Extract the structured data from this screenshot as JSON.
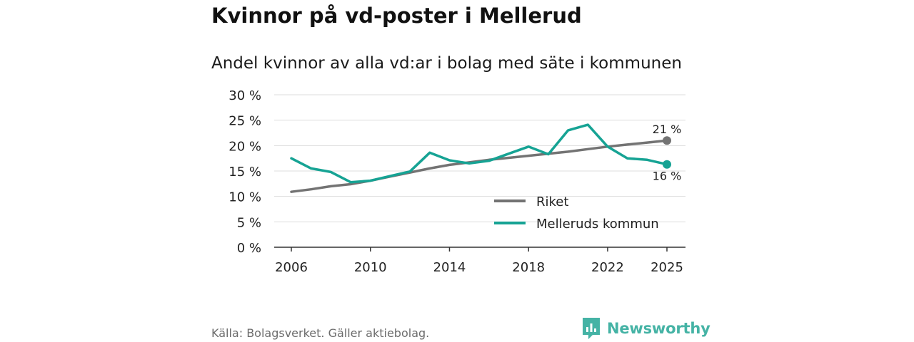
{
  "header": {
    "title": "Kvinnor på vd-poster i Mellerud",
    "subtitle": "Andel kvinnor av alla vd:ar i bolag med säte i kommunen"
  },
  "footer": {
    "source": "Källa: Bolagsverket. Gäller aktiebolag.",
    "brand": "Newsworthy"
  },
  "colors": {
    "riket": "#737373",
    "mellerud": "#16a394",
    "grid": "#dddddd",
    "axis": "#333333",
    "brand": "#45b3a5"
  },
  "chart_data": {
    "type": "line",
    "title": "Andel kvinnor av alla vd:ar i bolag med säte i kommunen",
    "xlabel": "",
    "ylabel": "",
    "xlim": [
      2006,
      2025
    ],
    "ylim": [
      0,
      30
    ],
    "x_ticks": [
      2006,
      2010,
      2014,
      2018,
      2022,
      2025
    ],
    "y_ticks": [
      0,
      5,
      10,
      15,
      20,
      25,
      30
    ],
    "y_tick_labels": [
      "0 %",
      "5 %",
      "10 %",
      "15 %",
      "20 %",
      "25 %",
      "30 %"
    ],
    "grid": true,
    "legend_position": "bottom-right",
    "x": [
      2006,
      2007,
      2008,
      2009,
      2010,
      2011,
      2012,
      2013,
      2014,
      2015,
      2016,
      2017,
      2018,
      2019,
      2020,
      2021,
      2022,
      2023,
      2024,
      2025
    ],
    "series": [
      {
        "name": "Riket",
        "color": "#737373",
        "values": [
          10.9,
          11.4,
          12.0,
          12.4,
          13.1,
          13.9,
          14.7,
          15.5,
          16.2,
          16.7,
          17.2,
          17.6,
          18.0,
          18.4,
          18.8,
          19.3,
          19.8,
          20.2,
          20.6,
          21.0
        ],
        "end_label": "21 %"
      },
      {
        "name": "Melleruds kommun",
        "color": "#16a394",
        "values": [
          17.5,
          15.5,
          14.8,
          12.8,
          13.1,
          14.0,
          14.9,
          18.6,
          17.1,
          16.5,
          17.0,
          18.4,
          19.8,
          18.3,
          23.0,
          24.1,
          19.8,
          17.5,
          17.2,
          16.3
        ],
        "end_label": "16 %"
      }
    ]
  }
}
